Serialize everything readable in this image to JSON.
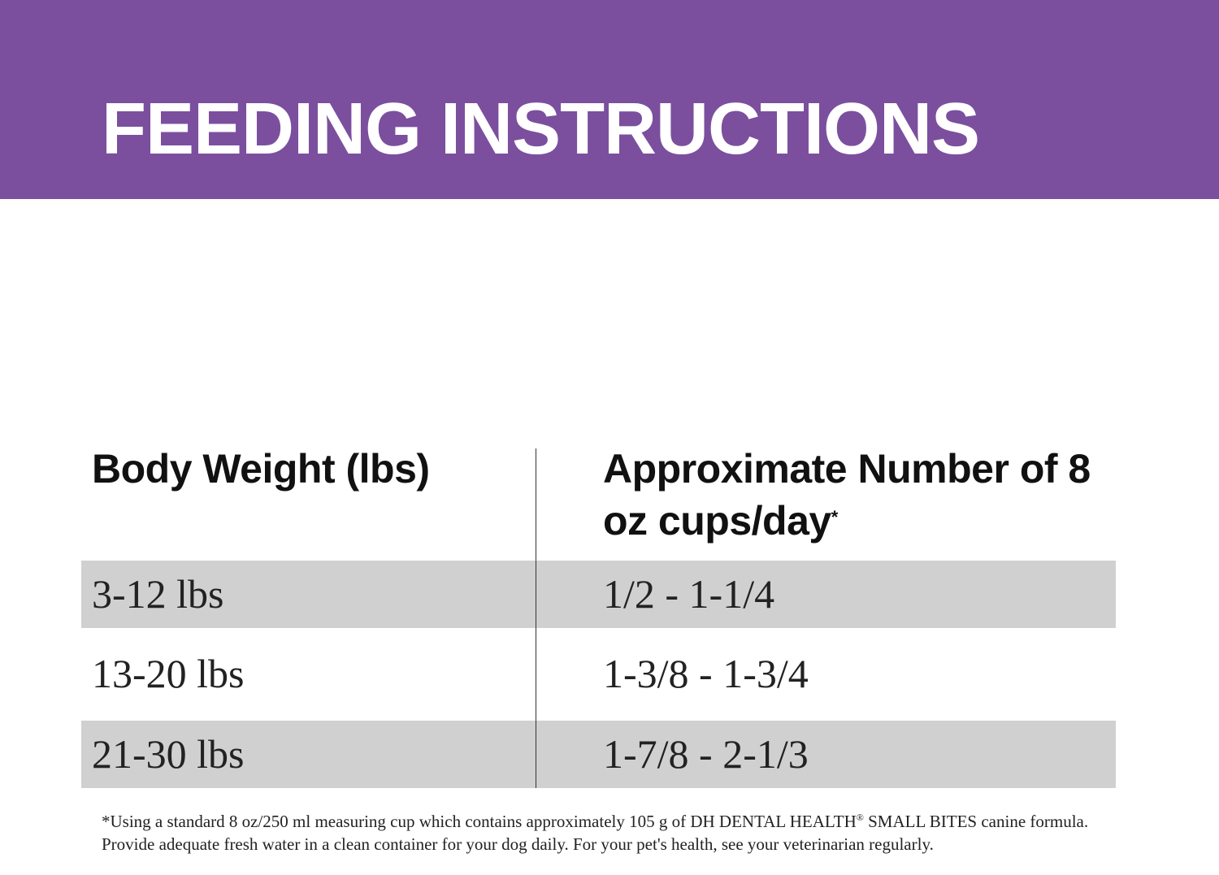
{
  "header": {
    "title": "FEEDING INSTRUCTIONS"
  },
  "table": {
    "headers": [
      "Body Weight (lbs)",
      "Approximate Number of 8 oz cups/day"
    ],
    "header_mark": "*",
    "rows": [
      [
        "3-12 lbs",
        "1/2 - 1-1/4"
      ],
      [
        "13-20 lbs",
        "1-3/8 - 1-3/4"
      ],
      [
        "21-30 lbs",
        "1-7/8 - 2-1/3"
      ]
    ]
  },
  "footnote": {
    "parts": [
      "*Using a standard 8 oz/250 ml measuring cup which contains approximately 105 g of DH DENTAL HEALTH",
      "®",
      " SMALL BITES canine formula. Provide adequate fresh water in a clean container for your dog daily. For your pet's health, see your veterinarian regularly."
    ]
  }
}
